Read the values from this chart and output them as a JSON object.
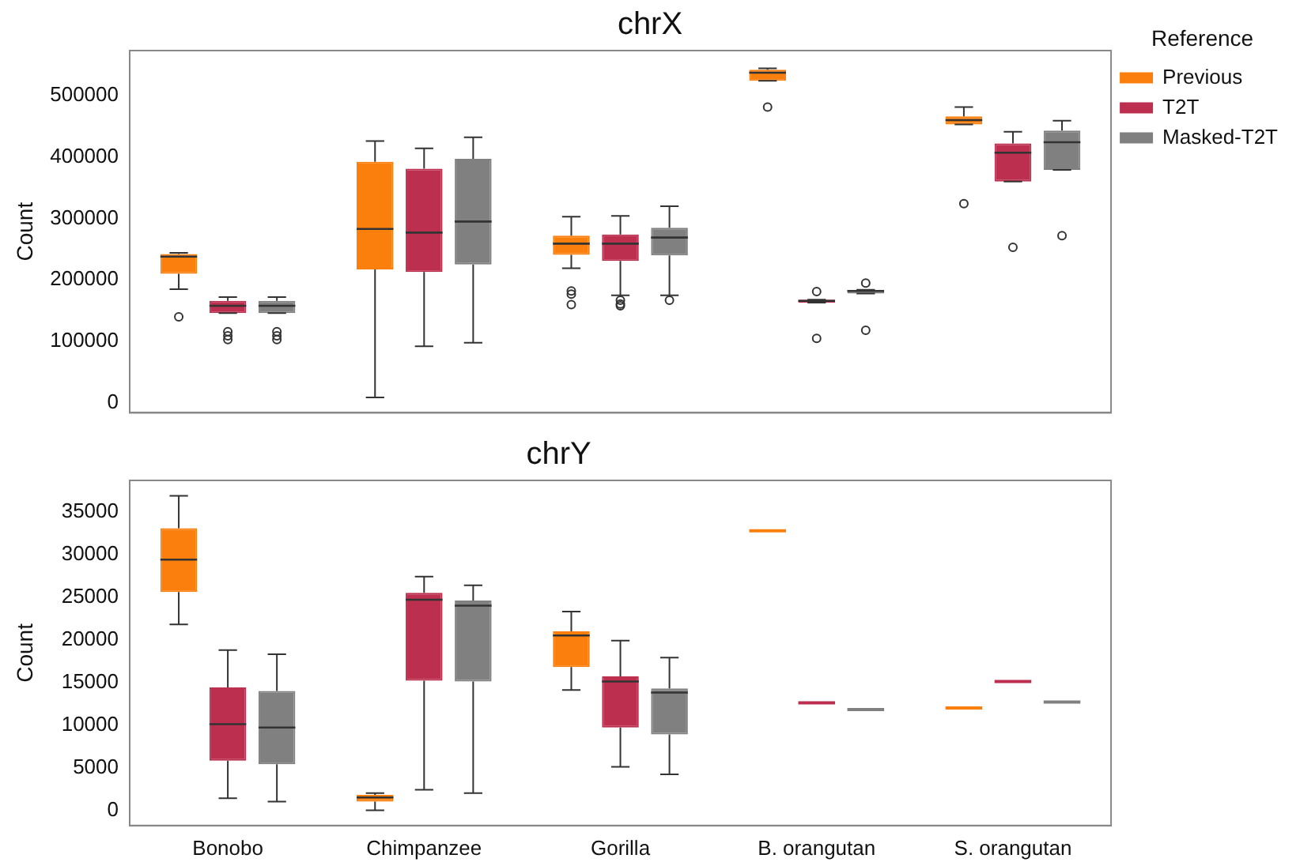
{
  "chart_data": [
    {
      "type": "box",
      "title": "chrX",
      "ylabel": "Count",
      "legend_title": "Reference",
      "legend": "top right",
      "grid": false,
      "tick_labels": "y",
      "categories": [
        null,
        null,
        null,
        null,
        null
      ],
      "ylim": [
        -16000,
        573000
      ],
      "yticks": [
        0,
        100000,
        200000,
        300000,
        400000,
        500000
      ],
      "series": [
        {
          "name": "Previous",
          "color": "#fb7f0d",
          "boxes": [
            {
              "low": 185000,
              "q1": 210000,
              "median": 238000,
              "q3": 242000,
              "high": 244000,
              "outliers": [
                140000
              ]
            },
            {
              "low": 9000,
              "q1": 217000,
              "median": 283000,
              "q3": 392000,
              "high": 426000
            },
            {
              "low": 219000,
              "q1": 241000,
              "median": 259000,
              "q3": 272000,
              "high": 303000,
              "outliers": [
                182000,
                177000,
                160000
              ]
            },
            {
              "low": 524000,
              "q1": 524000,
              "median": 537000,
              "q3": 542000,
              "high": 544000,
              "outliers": [
                481000
              ]
            },
            {
              "low": 453000,
              "q1": 453000,
              "median": 460000,
              "q3": 466000,
              "high": 481000,
              "outliers": [
                324000
              ]
            }
          ]
        },
        {
          "name": "T2T",
          "color": "#bc2f4f",
          "boxes": [
            {
              "low": 146000,
              "q1": 146000,
              "median": 158000,
              "q3": 166000,
              "high": 172000,
              "outliers": [
                116000,
                109000,
                103000
              ]
            },
            {
              "low": 92000,
              "q1": 213000,
              "median": 277000,
              "q3": 381000,
              "high": 414000
            },
            {
              "low": 175000,
              "q1": 231000,
              "median": 259000,
              "q3": 274000,
              "high": 304000,
              "outliers": [
                167000,
                161000,
                158000
              ]
            },
            {
              "low": 163000,
              "q1": 163000,
              "median": 166000,
              "q3": 168000,
              "high": 168000,
              "outliers": [
                181000,
                105000
              ]
            },
            {
              "low": 360000,
              "q1": 360000,
              "median": 407000,
              "q3": 422000,
              "high": 441000,
              "outliers": [
                253000
              ]
            }
          ]
        },
        {
          "name": "Masked-T2T",
          "color": "#808080",
          "boxes": [
            {
              "low": 146000,
              "q1": 146000,
              "median": 158000,
              "q3": 166000,
              "high": 172000,
              "outliers": [
                116000,
                109000,
                103000
              ]
            },
            {
              "low": 98000,
              "q1": 225000,
              "median": 295000,
              "q3": 397000,
              "high": 432000
            },
            {
              "low": 175000,
              "q1": 240000,
              "median": 269000,
              "q3": 285000,
              "high": 320000,
              "outliers": [
                167000
              ]
            },
            {
              "low": 178000,
              "q1": 178000,
              "median": 182000,
              "q3": 184000,
              "high": 184000,
              "outliers": [
                195000,
                118000
              ]
            },
            {
              "low": 379000,
              "q1": 379000,
              "median": 424000,
              "q3": 443000,
              "high": 459000,
              "outliers": [
                272000
              ]
            }
          ]
        }
      ]
    },
    {
      "type": "box",
      "title": "chrY",
      "ylabel": "Count",
      "grid": false,
      "categories": [
        "Bonobo",
        "Chimpanzee",
        "Gorilla",
        "B. orangutan",
        "S. orangutan"
      ],
      "ylim": [
        -1800,
        38700
      ],
      "yticks": [
        0,
        5000,
        10000,
        15000,
        20000,
        25000,
        30000,
        35000
      ],
      "series": [
        {
          "color": "#fb7f0d",
          "boxes": [
            {
              "low": 21800,
              "q1": 25600,
              "median": 29400,
              "q3": 33100,
              "high": 36900
            },
            {
              "low": 0,
              "q1": 1000,
              "median": 1500,
              "q3": 1800,
              "high": 2000
            },
            {
              "low": 14100,
              "q1": 16800,
              "median": 20500,
              "q3": 21000,
              "high": 23300
            },
            {
              "low": 32800,
              "q1": 32800,
              "median": 32800,
              "q3": 32800,
              "high": 32800
            },
            {
              "low": 12000,
              "q1": 12000,
              "median": 12000,
              "q3": 12000,
              "high": 12000
            }
          ]
        },
        {
          "color": "#bc2f4f",
          "boxes": [
            {
              "low": 1400,
              "q1": 5800,
              "median": 10100,
              "q3": 14400,
              "high": 18800
            },
            {
              "low": 2400,
              "q1": 15200,
              "median": 24700,
              "q3": 25500,
              "high": 27400
            },
            {
              "low": 5100,
              "q1": 9700,
              "median": 15100,
              "q3": 15700,
              "high": 19900
            },
            {
              "low": 12600,
              "q1": 12600,
              "median": 12600,
              "q3": 12600,
              "high": 12600
            },
            {
              "low": 15100,
              "q1": 15100,
              "median": 15100,
              "q3": 15100,
              "high": 15100
            }
          ]
        },
        {
          "color": "#808080",
          "boxes": [
            {
              "low": 1000,
              "q1": 5400,
              "median": 9700,
              "q3": 14000,
              "high": 18300
            },
            {
              "low": 2000,
              "q1": 15100,
              "median": 24000,
              "q3": 24600,
              "high": 26400
            },
            {
              "low": 4200,
              "q1": 8900,
              "median": 13800,
              "q3": 14300,
              "high": 17900
            },
            {
              "low": 11800,
              "q1": 11800,
              "median": 11800,
              "q3": 11800,
              "high": 11800
            },
            {
              "low": 12700,
              "q1": 12700,
              "median": 12700,
              "q3": 12700,
              "high": 12700
            }
          ]
        }
      ]
    }
  ]
}
